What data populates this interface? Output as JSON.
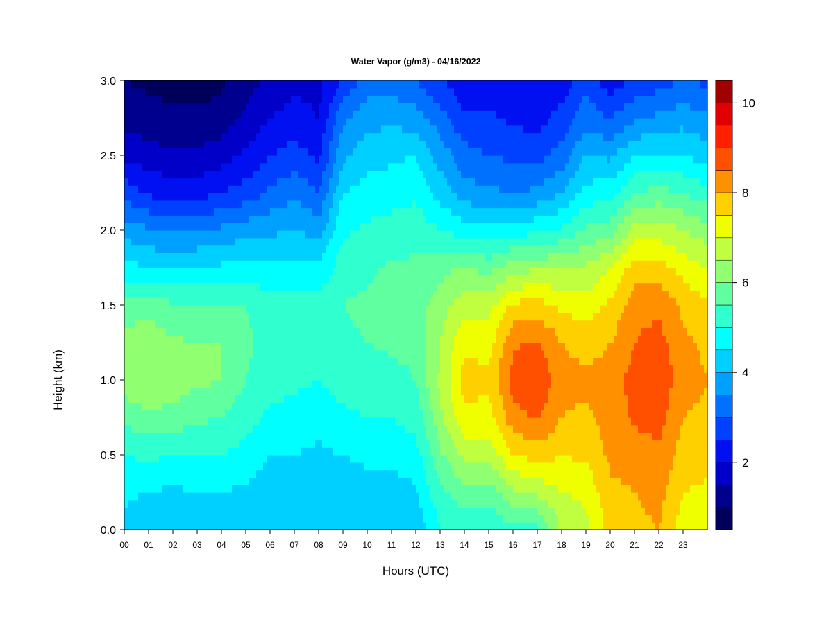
{
  "chart_data": {
    "type": "heatmap",
    "title": "Water Vapor (g/m3) - 04/16/2022",
    "xlabel": "Hours (UTC)",
    "ylabel": "Height (km)",
    "x_ticks": [
      "00",
      "01",
      "02",
      "03",
      "04",
      "05",
      "06",
      "07",
      "08",
      "09",
      "10",
      "11",
      "12",
      "13",
      "14",
      "15",
      "16",
      "17",
      "18",
      "19",
      "20",
      "21",
      "22",
      "23"
    ],
    "x_range": [
      0,
      24
    ],
    "y_ticks": [
      "0.0",
      "0.5",
      "1.0",
      "1.5",
      "2.0",
      "2.5",
      "3.0"
    ],
    "y_range": [
      0,
      3.0
    ],
    "colorbar": {
      "ticks": [
        "2",
        "4",
        "6",
        "8",
        "10"
      ],
      "range": [
        0.5,
        10.5
      ],
      "levels": 20,
      "colors": [
        "#00005a",
        "#00008f",
        "#0000c8",
        "#0010f0",
        "#0040ff",
        "#0070ff",
        "#00a0ff",
        "#00d0ff",
        "#00ffff",
        "#30ffd0",
        "#60ffa0",
        "#90ff70",
        "#c0ff40",
        "#f0ff00",
        "#ffd000",
        "#ff9000",
        "#ff5000",
        "#ff2000",
        "#e00000",
        "#a00000",
        "#700000"
      ]
    },
    "hours": [
      0,
      1,
      2,
      3,
      4,
      5,
      6,
      7,
      8,
      9,
      10,
      11,
      12,
      13,
      14,
      15,
      16,
      17,
      18,
      19,
      20,
      21,
      22,
      23,
      24
    ],
    "heights_km": [
      0.0,
      0.25,
      0.5,
      0.75,
      1.0,
      1.25,
      1.5,
      1.75,
      2.0,
      2.25,
      2.5,
      2.75,
      3.0
    ],
    "values": [
      [
        4.3,
        4.6,
        5.0,
        5.6,
        6.3,
        6.2,
        5.7,
        4.7,
        3.8,
        2.8,
        1.9,
        1.3,
        1.0
      ],
      [
        4.1,
        4.5,
        5.1,
        5.9,
        6.5,
        6.3,
        5.8,
        4.5,
        3.6,
        2.4,
        1.7,
        1.2,
        0.9
      ],
      [
        4.0,
        4.4,
        5.0,
        5.8,
        6.3,
        6.1,
        5.6,
        4.4,
        3.4,
        2.3,
        1.6,
        1.1,
        0.8
      ],
      [
        4.1,
        4.5,
        5.0,
        5.6,
        6.1,
        6.0,
        5.5,
        4.5,
        3.5,
        2.3,
        1.6,
        1.1,
        0.8
      ],
      [
        4.1,
        4.5,
        5.0,
        5.5,
        6.0,
        6.0,
        5.5,
        4.6,
        3.6,
        2.5,
        1.8,
        1.2,
        0.9
      ],
      [
        4.1,
        4.4,
        4.8,
        5.2,
        5.5,
        5.6,
        5.5,
        4.7,
        3.8,
        2.7,
        2.1,
        1.6,
        1.3
      ],
      [
        4.0,
        4.2,
        4.5,
        4.9,
        5.2,
        5.3,
        5.2,
        4.6,
        3.9,
        3.1,
        2.5,
        2.0,
        1.6
      ],
      [
        4.0,
        4.2,
        4.5,
        4.8,
        5.1,
        5.3,
        5.2,
        4.7,
        4.0,
        3.4,
        2.7,
        2.2,
        1.9
      ],
      [
        4.0,
        4.2,
        4.4,
        4.7,
        5.0,
        5.3,
        5.2,
        4.6,
        3.8,
        3.0,
        2.4,
        2.0,
        1.8
      ],
      [
        4.0,
        4.2,
        4.5,
        4.9,
        5.2,
        5.4,
        5.5,
        5.3,
        4.9,
        4.5,
        3.9,
        3.4,
        2.6
      ],
      [
        4.0,
        4.3,
        4.6,
        5.0,
        5.3,
        5.5,
        5.6,
        5.4,
        5.1,
        4.7,
        4.3,
        3.8,
        3.2
      ],
      [
        4.0,
        4.3,
        4.6,
        5.0,
        5.3,
        5.6,
        5.7,
        5.6,
        5.2,
        4.8,
        4.4,
        3.9,
        3.2
      ],
      [
        4.1,
        4.4,
        4.8,
        5.2,
        5.5,
        5.7,
        5.7,
        5.6,
        5.3,
        4.9,
        4.5,
        3.7,
        3.0
      ],
      [
        5.0,
        5.4,
        5.9,
        6.4,
        6.6,
        6.5,
        6.3,
        5.8,
        5.0,
        4.3,
        3.8,
        3.2,
        2.6
      ],
      [
        5.2,
        5.8,
        6.6,
        7.4,
        7.7,
        7.4,
        6.8,
        6.1,
        4.8,
        3.7,
        3.2,
        2.6,
        2.1
      ],
      [
        5.1,
        5.7,
        6.7,
        7.3,
        7.6,
        7.3,
        6.8,
        5.8,
        4.7,
        3.6,
        3.0,
        2.6,
        2.1
      ],
      [
        5.3,
        6.4,
        7.5,
        8.3,
        8.7,
        8.4,
        7.6,
        6.3,
        4.8,
        3.5,
        2.9,
        2.4,
        2.0
      ],
      [
        5.3,
        6.6,
        7.7,
        8.6,
        8.9,
        8.6,
        7.7,
        6.4,
        4.9,
        3.6,
        2.8,
        2.3,
        2.0
      ],
      [
        6.6,
        7.0,
        7.5,
        8.0,
        8.2,
        8.0,
        7.4,
        6.5,
        5.1,
        4.0,
        3.2,
        2.7,
        2.2
      ],
      [
        6.8,
        7.1,
        7.6,
        7.9,
        8.1,
        7.8,
        7.2,
        6.6,
        5.6,
        4.7,
        4.0,
        3.3,
        2.8
      ],
      [
        7.7,
        7.9,
        8.1,
        8.2,
        8.2,
        8.0,
        7.6,
        7.0,
        5.8,
        4.8,
        3.9,
        3.0,
        2.2
      ],
      [
        7.8,
        8.0,
        8.2,
        8.6,
        8.7,
        8.5,
        8.3,
        7.7,
        6.7,
        5.5,
        4.5,
        3.4,
        2.6
      ],
      [
        8.0,
        8.2,
        8.4,
        8.7,
        8.9,
        8.7,
        8.4,
        7.7,
        6.8,
        5.7,
        4.6,
        3.6,
        2.8
      ],
      [
        7.2,
        7.5,
        7.8,
        8.0,
        8.2,
        8.1,
        7.9,
        7.3,
        6.5,
        5.5,
        4.5,
        3.8,
        3.0
      ],
      [
        7.1,
        7.4,
        7.7,
        7.9,
        8.0,
        7.9,
        7.6,
        7.0,
        6.2,
        5.2,
        4.3,
        3.6,
        2.9
      ]
    ]
  }
}
